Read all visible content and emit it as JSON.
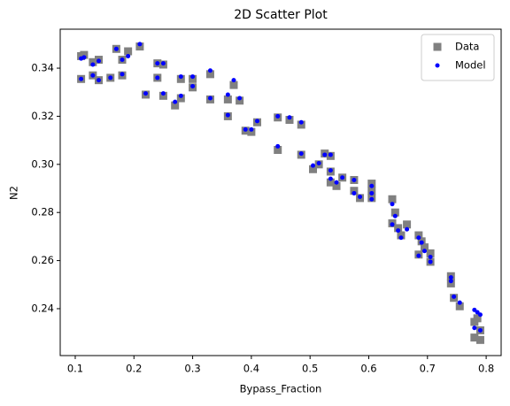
{
  "chart_data": {
    "type": "scatter",
    "title": "2D Scatter Plot",
    "x_label": "Bypass_Fraction",
    "y_label": "N2",
    "x": [
      0.11,
      0.11,
      0.115,
      0.13,
      0.13,
      0.14,
      0.14,
      0.16,
      0.17,
      0.18,
      0.18,
      0.19,
      0.21,
      0.22,
      0.24,
      0.24,
      0.25,
      0.25,
      0.27,
      0.28,
      0.28,
      0.3,
      0.3,
      0.33,
      0.33,
      0.36,
      0.36,
      0.37,
      0.38,
      0.39,
      0.4,
      0.41,
      0.445,
      0.445,
      0.465,
      0.485,
      0.485,
      0.505,
      0.515,
      0.525,
      0.535,
      0.535,
      0.535,
      0.545,
      0.555,
      0.575,
      0.575,
      0.585,
      0.605,
      0.605,
      0.605,
      0.64,
      0.64,
      0.645,
      0.65,
      0.655,
      0.665,
      0.685,
      0.685,
      0.69,
      0.695,
      0.705,
      0.705,
      0.74,
      0.74,
      0.745,
      0.755,
      0.78,
      0.78,
      0.785,
      0.79,
      0.79
    ],
    "series": [
      {
        "name": "Data",
        "color": "#808080",
        "marker": "square",
        "values": [
          0.345,
          0.3355,
          0.3455,
          0.3425,
          0.337,
          0.3435,
          0.335,
          0.336,
          0.348,
          0.3435,
          0.337,
          0.347,
          0.349,
          0.329,
          0.342,
          0.336,
          0.3415,
          0.3285,
          0.3245,
          0.3355,
          0.3275,
          0.3355,
          0.332,
          0.3375,
          0.327,
          0.327,
          0.32,
          0.333,
          0.3265,
          0.314,
          0.3135,
          0.3175,
          0.3195,
          0.306,
          0.3185,
          0.3165,
          0.304,
          0.298,
          0.3,
          0.3045,
          0.3035,
          0.297,
          0.2925,
          0.291,
          0.2945,
          0.2935,
          0.289,
          0.286,
          0.292,
          0.289,
          0.286,
          0.2855,
          0.2755,
          0.28,
          0.2735,
          0.2705,
          0.275,
          0.2705,
          0.2625,
          0.268,
          0.2655,
          0.263,
          0.2595,
          0.2535,
          0.2505,
          0.2445,
          0.241,
          0.2345,
          0.228,
          0.236,
          0.227,
          0.231
        ]
      },
      {
        "name": "Model",
        "color": "#0000ff",
        "marker": "circle",
        "values": [
          0.344,
          0.3355,
          0.3445,
          0.3415,
          0.337,
          0.343,
          0.335,
          0.336,
          0.348,
          0.3435,
          0.3375,
          0.345,
          0.35,
          0.3295,
          0.342,
          0.336,
          0.342,
          0.3295,
          0.326,
          0.3365,
          0.3285,
          0.3365,
          0.3325,
          0.339,
          0.3275,
          0.329,
          0.3205,
          0.335,
          0.3275,
          0.3145,
          0.3145,
          0.318,
          0.32,
          0.3075,
          0.3195,
          0.3175,
          0.3045,
          0.2995,
          0.3005,
          0.304,
          0.304,
          0.2975,
          0.294,
          0.2925,
          0.2945,
          0.2935,
          0.288,
          0.2865,
          0.291,
          0.288,
          0.2855,
          0.2835,
          0.275,
          0.2785,
          0.2725,
          0.2695,
          0.273,
          0.2695,
          0.262,
          0.2675,
          0.264,
          0.2615,
          0.2595,
          0.253,
          0.2515,
          0.245,
          0.2425,
          0.2395,
          0.232,
          0.2385,
          0.2375,
          0.231
        ]
      }
    ],
    "xlim": [
      0.0744,
      0.8255
    ],
    "ylim": [
      0.2205,
      0.3562
    ],
    "xticks": [
      0.1,
      0.2,
      0.3,
      0.4,
      0.5,
      0.6,
      0.7,
      0.8
    ],
    "yticks": [
      0.24,
      0.26,
      0.28,
      {
        "value": 0.3,
        "label": "0.30"
      },
      0.32,
      0.34
    ],
    "grid": false,
    "legend": "upper right"
  }
}
